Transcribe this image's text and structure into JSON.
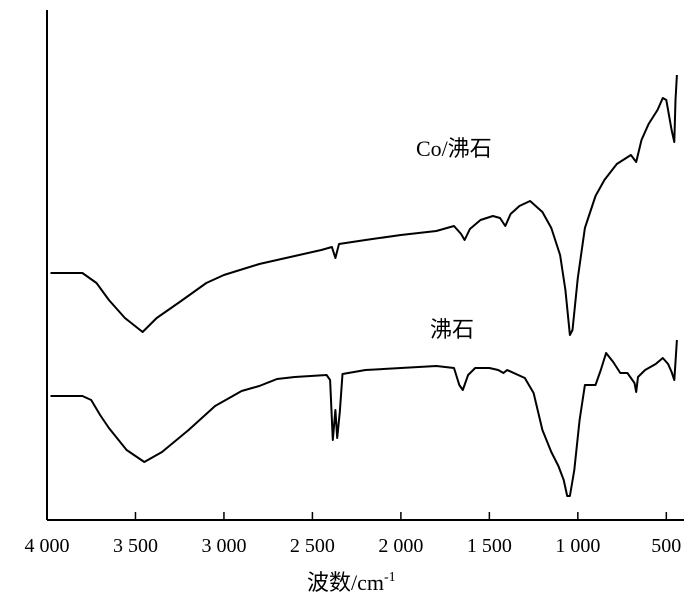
{
  "chart_data": {
    "type": "line",
    "xlabel": "波数/cm",
    "xlabel_superscript": "-1",
    "xlim": [
      4000,
      400
    ],
    "x_reversed": true,
    "y_ticks_shown": false,
    "grid": false,
    "x_ticks": [
      {
        "value": 4000,
        "label": "4 000"
      },
      {
        "value": 3500,
        "label": "3 500"
      },
      {
        "value": 3000,
        "label": "3 000"
      },
      {
        "value": 2500,
        "label": "2 500"
      },
      {
        "value": 2000,
        "label": "2 000"
      },
      {
        "value": 1500,
        "label": "1 500"
      },
      {
        "value": 1000,
        "label": "1 000"
      },
      {
        "value": 500,
        "label": "500"
      }
    ],
    "series": [
      {
        "name": "Co/沸石",
        "color": "#000000",
        "points": [
          [
            3980,
            273
          ],
          [
            3800,
            273
          ],
          [
            3720,
            283
          ],
          [
            3650,
            300
          ],
          [
            3560,
            318
          ],
          [
            3460,
            332
          ],
          [
            3380,
            318
          ],
          [
            3250,
            302
          ],
          [
            3100,
            283
          ],
          [
            3000,
            275
          ],
          [
            2800,
            264
          ],
          [
            2600,
            256
          ],
          [
            2450,
            250
          ],
          [
            2390,
            247
          ],
          [
            2370,
            258
          ],
          [
            2350,
            244
          ],
          [
            2200,
            240
          ],
          [
            2000,
            235
          ],
          [
            1800,
            231
          ],
          [
            1700,
            226
          ],
          [
            1660,
            234
          ],
          [
            1640,
            240
          ],
          [
            1610,
            229
          ],
          [
            1550,
            220
          ],
          [
            1480,
            216
          ],
          [
            1440,
            218
          ],
          [
            1410,
            226
          ],
          [
            1380,
            214
          ],
          [
            1330,
            206
          ],
          [
            1270,
            201
          ],
          [
            1200,
            212
          ],
          [
            1150,
            228
          ],
          [
            1100,
            255
          ],
          [
            1070,
            290
          ],
          [
            1045,
            335
          ],
          [
            1030,
            330
          ],
          [
            1000,
            278
          ],
          [
            960,
            228
          ],
          [
            900,
            196
          ],
          [
            850,
            180
          ],
          [
            780,
            164
          ],
          [
            700,
            155
          ],
          [
            670,
            162
          ],
          [
            640,
            140
          ],
          [
            600,
            124
          ],
          [
            550,
            110
          ],
          [
            520,
            98
          ],
          [
            500,
            100
          ],
          [
            470,
            130
          ],
          [
            455,
            142
          ],
          [
            448,
            100
          ],
          [
            440,
            75
          ]
        ]
      },
      {
        "name": "沸石",
        "color": "#000000",
        "points": [
          [
            3980,
            396
          ],
          [
            3800,
            396
          ],
          [
            3750,
            400
          ],
          [
            3700,
            415
          ],
          [
            3650,
            428
          ],
          [
            3550,
            450
          ],
          [
            3450,
            462
          ],
          [
            3350,
            452
          ],
          [
            3200,
            430
          ],
          [
            3050,
            406
          ],
          [
            2900,
            391
          ],
          [
            2800,
            386
          ],
          [
            2700,
            379
          ],
          [
            2600,
            377
          ],
          [
            2420,
            375
          ],
          [
            2400,
            380
          ],
          [
            2385,
            440
          ],
          [
            2370,
            410
          ],
          [
            2360,
            438
          ],
          [
            2345,
            412
          ],
          [
            2330,
            374
          ],
          [
            2200,
            370
          ],
          [
            2000,
            368
          ],
          [
            1800,
            366
          ],
          [
            1700,
            368
          ],
          [
            1670,
            385
          ],
          [
            1650,
            390
          ],
          [
            1620,
            375
          ],
          [
            1580,
            368
          ],
          [
            1500,
            368
          ],
          [
            1450,
            370
          ],
          [
            1420,
            373
          ],
          [
            1400,
            370
          ],
          [
            1300,
            378
          ],
          [
            1250,
            393
          ],
          [
            1200,
            430
          ],
          [
            1150,
            452
          ],
          [
            1110,
            466
          ],
          [
            1080,
            480
          ],
          [
            1060,
            496
          ],
          [
            1045,
            496
          ],
          [
            1020,
            470
          ],
          [
            990,
            420
          ],
          [
            960,
            385
          ],
          [
            930,
            385
          ],
          [
            900,
            385
          ],
          [
            870,
            370
          ],
          [
            840,
            353
          ],
          [
            800,
            362
          ],
          [
            760,
            373
          ],
          [
            720,
            373
          ],
          [
            680,
            383
          ],
          [
            670,
            392
          ],
          [
            660,
            377
          ],
          [
            620,
            370
          ],
          [
            560,
            364
          ],
          [
            520,
            358
          ],
          [
            490,
            364
          ],
          [
            470,
            372
          ],
          [
            455,
            380
          ],
          [
            448,
            362
          ],
          [
            440,
            340
          ]
        ]
      }
    ]
  }
}
